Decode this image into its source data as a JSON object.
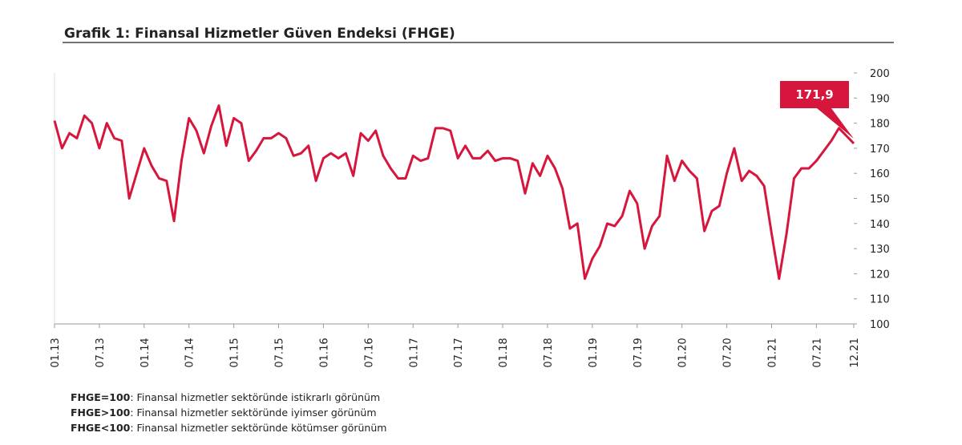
{
  "chart_data": {
    "type": "line",
    "title": "Grafik 1: Finansal Hizmetler Güven Endeksi (FHGE)",
    "categories": [
      "01.13",
      null,
      null,
      null,
      null,
      null,
      "07.13",
      null,
      null,
      null,
      null,
      null,
      "01.14",
      null,
      null,
      null,
      null,
      null,
      "07.14",
      null,
      null,
      null,
      null,
      null,
      "01.15",
      null,
      null,
      null,
      null,
      null,
      "07.15",
      null,
      null,
      null,
      null,
      null,
      "01.16",
      null,
      null,
      null,
      null,
      null,
      "07.16",
      null,
      null,
      null,
      null,
      null,
      "01.17",
      null,
      null,
      null,
      null,
      null,
      "07.17",
      null,
      null,
      null,
      null,
      null,
      "01.18",
      null,
      null,
      null,
      null,
      null,
      "07.18",
      null,
      null,
      null,
      null,
      null,
      "01.19",
      null,
      null,
      null,
      null,
      null,
      "07.19",
      null,
      null,
      null,
      null,
      null,
      "01.20",
      null,
      null,
      null,
      null,
      null,
      "07.20",
      null,
      null,
      null,
      null,
      null,
      "01.21",
      null,
      null,
      null,
      null,
      null,
      "07.21",
      null,
      null,
      null,
      null,
      "12.21"
    ],
    "series": [
      {
        "name": "FHGE",
        "color": "#d6163c",
        "values": [
          181,
          170,
          176,
          174,
          183,
          180,
          170,
          180,
          174,
          173,
          150,
          160,
          170,
          163,
          158,
          157,
          141,
          165,
          182,
          177,
          168,
          179,
          187,
          171,
          182,
          180,
          165,
          169,
          174,
          174,
          176,
          174,
          167,
          168,
          171,
          157,
          166,
          168,
          166,
          168,
          159,
          176,
          173,
          177,
          167,
          162,
          158,
          158,
          167,
          165,
          166,
          178,
          178,
          177,
          166,
          171,
          166,
          166,
          169,
          165,
          166,
          166,
          165,
          152,
          164,
          159,
          167,
          162,
          154,
          138,
          140,
          118,
          126,
          131,
          140,
          139,
          143,
          153,
          148,
          130,
          139,
          143,
          167,
          157,
          165,
          161,
          158,
          137,
          145,
          147,
          160,
          170,
          157,
          161,
          159,
          155,
          136,
          118,
          136,
          158,
          162,
          162,
          165,
          169,
          173,
          178,
          175,
          171.9
        ],
        "value_labels": [
          null,
          null,
          null,
          null,
          null,
          null,
          null,
          null,
          null,
          null,
          null,
          null,
          null,
          null,
          null,
          null,
          null,
          null,
          null,
          null,
          null,
          null,
          null,
          null,
          null,
          null,
          null,
          null,
          null,
          null,
          null,
          null,
          null,
          null,
          null,
          null,
          null,
          null,
          null,
          null,
          null,
          null,
          null,
          null,
          null,
          null,
          null,
          null,
          null,
          null,
          null,
          null,
          null,
          null,
          null,
          null,
          null,
          null,
          null,
          null,
          null,
          null,
          null,
          null,
          null,
          null,
          null,
          null,
          null,
          null,
          null,
          null,
          null,
          null,
          null,
          null,
          null,
          null,
          null,
          null,
          null,
          null,
          null,
          null,
          null,
          null,
          null,
          null,
          null,
          null,
          null,
          null,
          null,
          null,
          null,
          null,
          null,
          null,
          null,
          null,
          null,
          null,
          null,
          null,
          null,
          null,
          null,
          "171,9"
        ]
      }
    ],
    "ylim": [
      100,
      200
    ],
    "yticks": [
      100,
      110,
      120,
      130,
      140,
      150,
      160,
      170,
      180,
      190,
      200
    ],
    "notes": [
      {
        "term": "FHGE=100",
        "text": ": Finansal hizmetler sektöründe istikrarlı görünüm"
      },
      {
        "term": "FHGE>100",
        "text": ": Finansal hizmetler sektöründe iyimser görünüm"
      },
      {
        "term": "FHGE<100",
        "text": ": Finansal hizmetler sektöründe kötümser görünüm"
      }
    ]
  }
}
